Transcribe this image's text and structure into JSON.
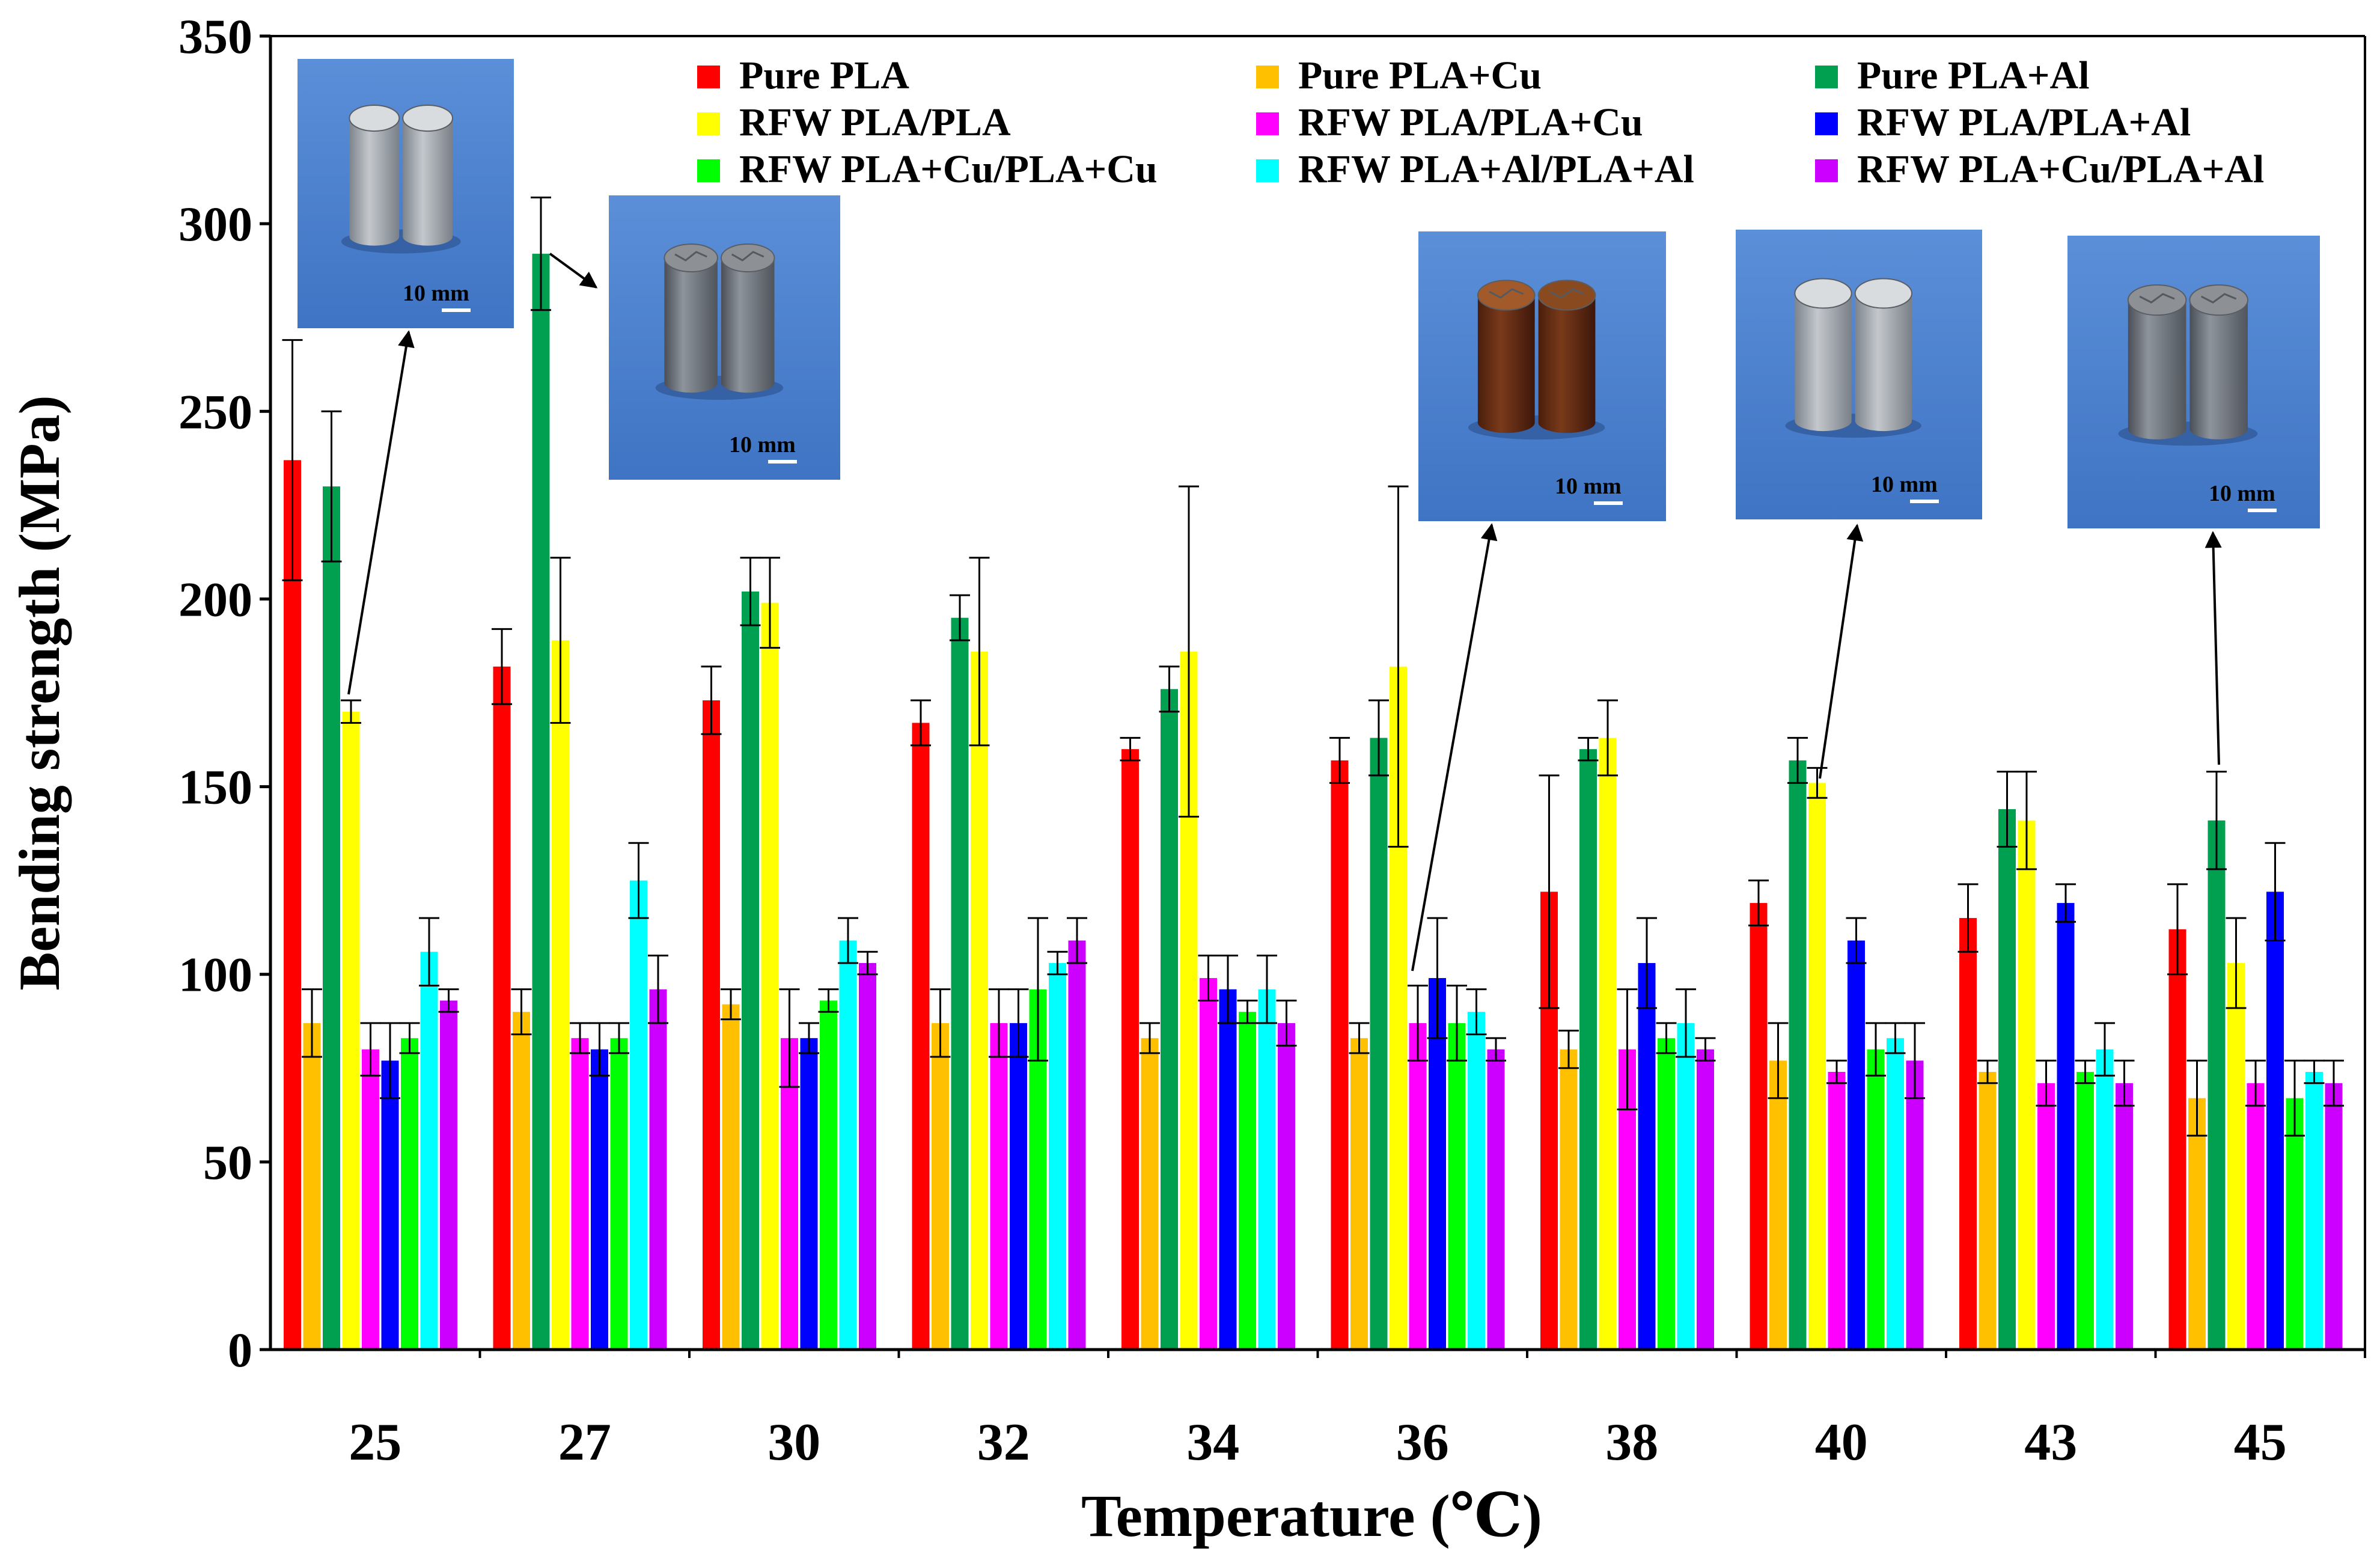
{
  "chart_data": {
    "type": "bar",
    "title": "",
    "xlabel": "Temperature (℃)",
    "ylabel": "Bending strength (MPa)",
    "ylim": [
      0,
      350
    ],
    "yticks": [
      0,
      50,
      100,
      150,
      200,
      250,
      300,
      350
    ],
    "grid": false,
    "legend_position": "top",
    "categories": [
      "25",
      "27",
      "30",
      "32",
      "34",
      "36",
      "38",
      "40",
      "43",
      "45"
    ],
    "series": [
      {
        "name": "Pure PLA",
        "color": "#ff0000",
        "values": [
          237,
          182,
          173,
          167,
          160,
          157,
          122,
          119,
          115,
          112
        ],
        "errors": [
          32,
          10,
          9,
          6,
          3,
          6,
          31,
          6,
          9,
          12
        ]
      },
      {
        "name": "Pure PLA+Cu",
        "color": "#ffc000",
        "values": [
          87,
          90,
          92,
          87,
          83,
          83,
          80,
          77,
          74,
          67
        ],
        "errors": [
          9,
          6,
          4,
          9,
          4,
          4,
          5,
          10,
          3,
          10
        ]
      },
      {
        "name": "Pure PLA+Al",
        "color": "#00a050",
        "values": [
          230,
          292,
          202,
          195,
          176,
          163,
          160,
          157,
          144,
          141
        ],
        "errors": [
          20,
          15,
          9,
          6,
          6,
          10,
          3,
          6,
          10,
          13
        ]
      },
      {
        "name": "RFW PLA/PLA",
        "color": "#ffff00",
        "values": [
          170,
          189,
          199,
          186,
          186,
          182,
          163,
          151,
          141,
          103
        ],
        "errors": [
          3,
          22,
          12,
          25,
          44,
          48,
          10,
          4,
          13,
          12
        ]
      },
      {
        "name": "RFW PLA/PLA+Cu",
        "color": "#ff00ff",
        "values": [
          80,
          83,
          83,
          87,
          99,
          87,
          80,
          74,
          71,
          71
        ],
        "errors": [
          7,
          4,
          13,
          9,
          6,
          10,
          16,
          3,
          6,
          6
        ]
      },
      {
        "name": "RFW PLA/PLA+Al",
        "color": "#0000ff",
        "values": [
          77,
          80,
          83,
          87,
          96,
          99,
          103,
          109,
          119,
          122
        ],
        "errors": [
          10,
          7,
          4,
          9,
          9,
          16,
          12,
          6,
          5,
          13
        ]
      },
      {
        "name": "RFW PLA+Cu/PLA+Cu",
        "color": "#00ff00",
        "values": [
          83,
          83,
          93,
          96,
          90,
          87,
          83,
          80,
          74,
          67
        ],
        "errors": [
          4,
          4,
          3,
          19,
          3,
          10,
          4,
          7,
          3,
          10
        ]
      },
      {
        "name": "RFW PLA+Al/PLA+Al",
        "color": "#00ffff",
        "values": [
          106,
          125,
          109,
          103,
          96,
          90,
          87,
          83,
          80,
          74
        ],
        "errors": [
          9,
          10,
          6,
          3,
          9,
          6,
          9,
          4,
          7,
          3
        ]
      },
      {
        "name": "RFW PLA+Cu/PLA+Al",
        "color": "#cc00ff",
        "values": [
          93,
          96,
          103,
          109,
          87,
          80,
          80,
          77,
          71,
          71
        ],
        "errors": [
          3,
          9,
          3,
          6,
          6,
          3,
          3,
          10,
          6,
          6
        ]
      }
    ]
  },
  "insets": [
    {
      "scale_label": "10 mm",
      "sample": "grey"
    },
    {
      "scale_label": "10 mm",
      "sample": "grey-fractured"
    },
    {
      "scale_label": "10 mm",
      "sample": "copper"
    },
    {
      "scale_label": "10 mm",
      "sample": "aluminium"
    },
    {
      "scale_label": "10 mm",
      "sample": "grey-fractured"
    }
  ]
}
